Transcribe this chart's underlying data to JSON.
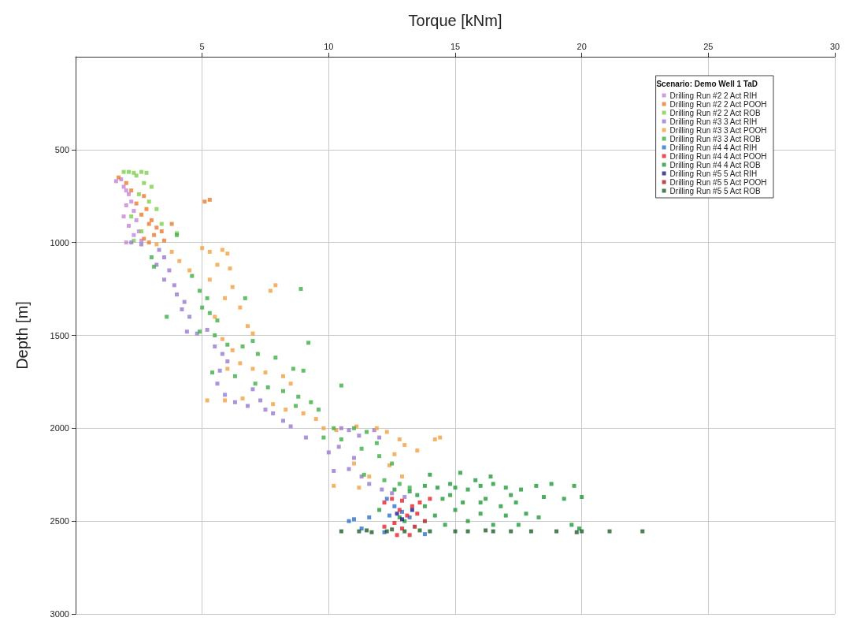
{
  "chart_data": {
    "type": "scatter",
    "xlabel": "Torque [kNm]",
    "ylabel": "Depth [m]",
    "legend_title": "Scenario: Demo Well 1 TaD",
    "xlim": [
      0,
      30
    ],
    "xticks": [
      5,
      10,
      15,
      20,
      25,
      30
    ],
    "ylim": [
      3000,
      0
    ],
    "yticks": [
      500,
      1000,
      1500,
      2000,
      2500,
      3000
    ],
    "grid": true,
    "legend": "top right",
    "marker": "square",
    "series": [
      {
        "name": "Drilling Run #2 2 Act RIH",
        "color": "#c784d8",
        "x": [
          1.6,
          1.8,
          1.9,
          2.0,
          2.1,
          2.2,
          2.0,
          2.3,
          1.9,
          2.4,
          2.1,
          2.5,
          2.3,
          2.6,
          2.0
        ],
        "values": [
          670,
          660,
          700,
          720,
          740,
          780,
          800,
          830,
          860,
          880,
          910,
          940,
          960,
          990,
          1000
        ]
      },
      {
        "name": "Drilling Run #2 2 Act POOH",
        "color": "#ee7b2c",
        "x": [
          1.7,
          2.0,
          2.2,
          2.7,
          2.4,
          2.8,
          2.6,
          3.0,
          2.9,
          3.2,
          3.4,
          3.1,
          2.7,
          3.5,
          5.1,
          5.3,
          2.9,
          3.8
        ],
        "values": [
          650,
          680,
          720,
          750,
          790,
          820,
          850,
          880,
          900,
          920,
          940,
          960,
          980,
          990,
          780,
          770,
          1000,
          900
        ]
      },
      {
        "name": "Drilling Run #2 2 Act ROB",
        "color": "#7ccf4a",
        "x": [
          1.9,
          2.1,
          2.3,
          2.6,
          2.8,
          2.4,
          2.7,
          3.0,
          2.5,
          2.9,
          3.2,
          2.2,
          3.4,
          2.6,
          4.0,
          2.3
        ],
        "values": [
          620,
          620,
          625,
          620,
          625,
          640,
          680,
          700,
          740,
          780,
          820,
          860,
          900,
          940,
          950,
          990
        ]
      },
      {
        "name": "Drilling Run #3 3 Act RIH",
        "color": "#9878cf",
        "x": [
          2.2,
          2.6,
          3.3,
          3.5,
          3.2,
          3.7,
          3.5,
          3.9,
          4.0,
          4.3,
          4.2,
          4.5,
          4.4,
          4.8,
          5.2,
          5.5,
          5.8,
          6.0,
          5.7,
          5.6,
          5.9,
          6.3,
          6.8,
          7.0,
          7.3,
          7.5,
          7.8,
          8.2,
          8.5,
          9.1,
          10.5,
          10.8,
          11.2,
          10.4,
          10.0,
          11.0,
          10.8,
          11.3,
          11.6,
          12.1,
          12.5,
          13.0,
          11.8,
          12.0,
          10.2
        ],
        "values": [
          1000,
          1010,
          1040,
          1080,
          1120,
          1150,
          1200,
          1230,
          1280,
          1320,
          1360,
          1400,
          1480,
          1490,
          1470,
          1560,
          1600,
          1640,
          1690,
          1760,
          1820,
          1860,
          1880,
          1790,
          1850,
          1900,
          1920,
          1960,
          1990,
          2050,
          2000,
          2010,
          2040,
          2100,
          2130,
          2160,
          2220,
          2260,
          2300,
          2330,
          2350,
          2370,
          2010,
          2050,
          2230
        ]
      },
      {
        "name": "Drilling Run #3 3 Act POOH",
        "color": "#f5a03e",
        "x": [
          3.2,
          3.8,
          4.1,
          4.5,
          5.0,
          5.3,
          5.8,
          6.0,
          5.6,
          6.1,
          5.3,
          6.2,
          5.9,
          6.5,
          5.5,
          6.8,
          7.0,
          5.8,
          6.2,
          6.5,
          7.0,
          7.5,
          6.0,
          8.2,
          8.5,
          5.2,
          5.9,
          6.6,
          7.8,
          8.3,
          9.0,
          9.5,
          9.8,
          10.3,
          11.1,
          11.9,
          12.3,
          12.8,
          13.0,
          12.6,
          11.0,
          12.4,
          11.6,
          10.2,
          11.2,
          12.9,
          14.2,
          14.4,
          7.7,
          7.9,
          13.5
        ],
        "values": [
          1010,
          1050,
          1100,
          1150,
          1030,
          1050,
          1040,
          1060,
          1120,
          1140,
          1200,
          1240,
          1300,
          1350,
          1400,
          1450,
          1490,
          1520,
          1580,
          1650,
          1680,
          1700,
          1680,
          1720,
          1760,
          1850,
          1850,
          1840,
          1870,
          1900,
          1920,
          1950,
          2000,
          2010,
          1990,
          2000,
          2020,
          2060,
          2090,
          2140,
          2190,
          2200,
          2260,
          2310,
          2320,
          2260,
          2060,
          2050,
          1260,
          1230,
          2120
        ]
      },
      {
        "name": "Drilling Run #3 3 Act ROB",
        "color": "#3cb043",
        "x": [
          3.0,
          3.1,
          4.0,
          3.6,
          4.6,
          4.9,
          5.2,
          5.0,
          5.3,
          5.6,
          4.9,
          5.5,
          6.0,
          6.6,
          7.2,
          7.9,
          8.6,
          9.0,
          5.4,
          6.3,
          7.1,
          7.6,
          8.2,
          8.8,
          9.3,
          8.7,
          9.6,
          10.5,
          9.2,
          8.9,
          10.2,
          10.5,
          11.0,
          11.5,
          11.9,
          11.3,
          12.0,
          12.5,
          11.4,
          12.2,
          12.8,
          13.2,
          9.8,
          7.0,
          6.7
        ],
        "values": [
          1080,
          1130,
          960,
          1400,
          1180,
          1260,
          1300,
          1350,
          1380,
          1420,
          1480,
          1500,
          1550,
          1560,
          1600,
          1620,
          1680,
          1690,
          1700,
          1720,
          1760,
          1780,
          1800,
          1830,
          1860,
          1880,
          1900,
          1770,
          1540,
          1250,
          2000,
          2060,
          2000,
          2020,
          2080,
          2110,
          2150,
          2190,
          2250,
          2280,
          2300,
          2320,
          2050,
          1530,
          1300
        ]
      },
      {
        "name": "Drilling Run #4 4 Act RIH",
        "color": "#2d6fd2",
        "x": [
          10.8,
          11.0,
          11.6,
          12.4,
          12.9,
          12.6,
          12.3,
          13.2,
          12.2,
          13.8,
          11.3
        ],
        "values": [
          2500,
          2490,
          2480,
          2470,
          2450,
          2420,
          2380,
          2480,
          2560,
          2570,
          2540
        ]
      },
      {
        "name": "Drilling Run #4 4 Act POOH",
        "color": "#e8202a",
        "x": [
          12.2,
          12.5,
          12.9,
          13.3,
          13.6,
          14.0,
          12.8,
          13.1,
          13.5,
          12.6,
          12.9,
          12.7,
          13.2,
          12.2
        ],
        "values": [
          2400,
          2380,
          2390,
          2420,
          2400,
          2380,
          2440,
          2470,
          2460,
          2510,
          2540,
          2575,
          2575,
          2530
        ]
      },
      {
        "name": "Drilling Run #4 4 Act ROB",
        "color": "#1f9a3a",
        "x": [
          12.6,
          13.2,
          13.8,
          14.3,
          14.8,
          15.0,
          15.5,
          16.0,
          16.5,
          17.0,
          17.6,
          18.2,
          18.8,
          19.7,
          20.0,
          14.0,
          15.2,
          15.8,
          16.4,
          13.5,
          14.5,
          15.3,
          16.2,
          17.2,
          18.5,
          19.3,
          13.8,
          15.0,
          16.0,
          17.0,
          17.8,
          18.3,
          16.8,
          14.2,
          15.5,
          16.5,
          17.5,
          13.0,
          14.6,
          19.6,
          19.9,
          12.0,
          12.8,
          16.0,
          14.8,
          17.4
        ],
        "values": [
          2330,
          2340,
          2310,
          2320,
          2300,
          2320,
          2330,
          2310,
          2300,
          2320,
          2330,
          2310,
          2300,
          2310,
          2370,
          2250,
          2240,
          2280,
          2260,
          2360,
          2380,
          2400,
          2380,
          2360,
          2370,
          2380,
          2420,
          2440,
          2460,
          2470,
          2460,
          2480,
          2420,
          2470,
          2500,
          2520,
          2520,
          2500,
          2520,
          2520,
          2540,
          2440,
          2480,
          2400,
          2360,
          2400
        ]
      },
      {
        "name": "Drilling Run #5 5 Act RIH",
        "color": "#1b1b8a",
        "x": [
          12.7,
          12.9,
          13.3
        ],
        "values": [
          2460,
          2490,
          2440
        ]
      },
      {
        "name": "Drilling Run #5 5 Act POOH",
        "color": "#b01c1c",
        "x": [
          13.4,
          13.8
        ],
        "values": [
          2530,
          2500
        ]
      },
      {
        "name": "Drilling Run #5 5 Act ROB",
        "color": "#1e5e2a",
        "x": [
          10.5,
          11.2,
          11.7,
          12.3,
          13.0,
          14.0,
          15.0,
          15.5,
          16.5,
          17.2,
          18.0,
          19.0,
          20.0,
          21.1,
          22.4,
          11.5,
          12.5,
          13.6,
          16.2,
          19.8
        ],
        "values": [
          2555,
          2555,
          2560,
          2555,
          2555,
          2555,
          2555,
          2555,
          2555,
          2555,
          2555,
          2555,
          2555,
          2555,
          2555,
          2550,
          2545,
          2550,
          2550,
          2560
        ]
      }
    ]
  }
}
